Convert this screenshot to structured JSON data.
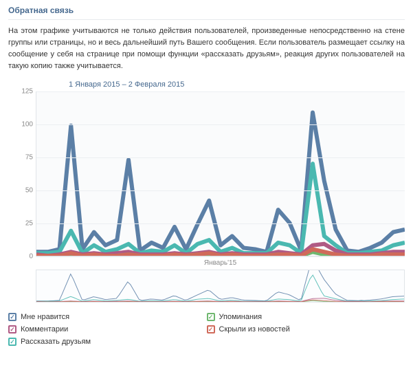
{
  "section_title": "Обратная связь",
  "description": "На этом графике учитываются не только действия пользователей, произведенные непосредственно на стене группы или страницы, но и весь дальнейший путь Вашего сообщения. Если пользователь размещает ссылку на сообщение у себя на странице при помощи функции «рассказать друзьям», реакция других пользователей на такую копию также учитывается.",
  "date_range": "1 Января 2015 – 2 Февраля 2015",
  "chart": {
    "type": "line",
    "ylim": [
      0,
      125
    ],
    "ytick_step": 25,
    "yticks": [
      0,
      25,
      50,
      75,
      100,
      125
    ],
    "n_points": 33,
    "x_axis_label": "Январь'15",
    "background_color": "#fafbfc",
    "grid_color": "#eceff2",
    "axis_color": "#e0e4e8",
    "tick_color": "#888888",
    "series": [
      {
        "key": "likes",
        "color": "#5b7fa6",
        "data": [
          3,
          3,
          5,
          99,
          5,
          18,
          8,
          12,
          73,
          4,
          10,
          6,
          22,
          5,
          24,
          42,
          8,
          15,
          6,
          5,
          3,
          35,
          25,
          4,
          109,
          57,
          20,
          4,
          3,
          6,
          10,
          18,
          20
        ]
      },
      {
        "key": "shares",
        "color": "#4ab8b0",
        "data": [
          2,
          2,
          3,
          19,
          2,
          8,
          3,
          5,
          9,
          2,
          4,
          3,
          8,
          2,
          9,
          12,
          3,
          6,
          2,
          2,
          2,
          10,
          8,
          2,
          70,
          15,
          8,
          2,
          2,
          3,
          4,
          8,
          10
        ]
      },
      {
        "key": "comments",
        "color": "#b05a84",
        "data": [
          1,
          0,
          1,
          3,
          1,
          2,
          1,
          2,
          3,
          1,
          1,
          1,
          2,
          1,
          2,
          3,
          1,
          2,
          1,
          1,
          1,
          3,
          2,
          1,
          8,
          9,
          4,
          1,
          1,
          1,
          2,
          3,
          3
        ]
      },
      {
        "key": "mentions",
        "color": "#6fb76f",
        "data": [
          0,
          0,
          0,
          1,
          0,
          0,
          0,
          0,
          1,
          0,
          0,
          0,
          0,
          0,
          1,
          0,
          0,
          0,
          0,
          0,
          0,
          1,
          0,
          0,
          3,
          1,
          0,
          0,
          0,
          0,
          0,
          1,
          0
        ]
      },
      {
        "key": "hidden",
        "color": "#d06a5a",
        "data": [
          0,
          0,
          0,
          2,
          0,
          1,
          0,
          0,
          1,
          0,
          0,
          0,
          1,
          0,
          1,
          2,
          0,
          1,
          0,
          0,
          0,
          1,
          1,
          0,
          5,
          3,
          1,
          0,
          0,
          0,
          1,
          1,
          1
        ]
      }
    ]
  },
  "overview": {
    "n_points": 130,
    "ymax": 110
  },
  "legend": {
    "columns": [
      [
        {
          "key": "likes",
          "label": "Мне нравится",
          "color": "#5b7fa6",
          "checked": true
        },
        {
          "key": "comments",
          "label": "Комментарии",
          "color": "#b05a84",
          "checked": true
        },
        {
          "key": "shares",
          "label": "Рассказать друзьям",
          "color": "#4ab8b0",
          "checked": true
        }
      ],
      [
        {
          "key": "mentions",
          "label": "Упоминания",
          "color": "#6fb76f",
          "checked": true
        },
        {
          "key": "hidden",
          "label": "Скрыли из новостей",
          "color": "#d06a5a",
          "checked": true
        }
      ]
    ]
  }
}
